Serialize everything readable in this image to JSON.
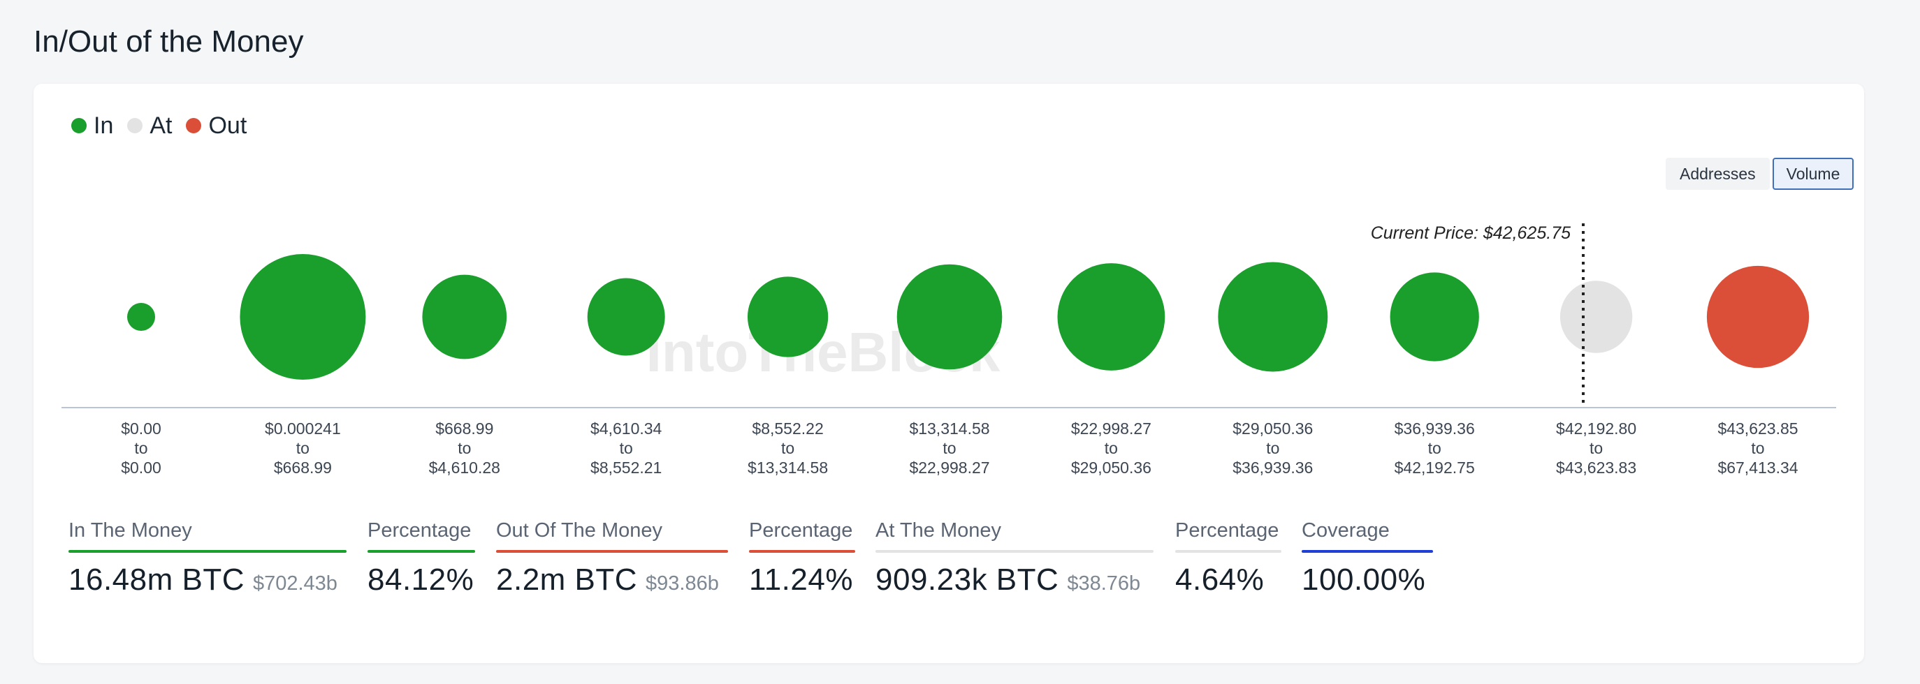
{
  "page": {
    "title": "In/Out of the Money"
  },
  "colors": {
    "in": "#1a9e2c",
    "at": "#e3e3e3",
    "out": "#db4f38",
    "coverage": "#1f3fd6",
    "baseline": "#b9c5d6",
    "watermark": "#e8e8e8"
  },
  "legend": {
    "items": [
      {
        "key": "in",
        "label": "In"
      },
      {
        "key": "at",
        "label": "At"
      },
      {
        "key": "out",
        "label": "Out"
      }
    ]
  },
  "toggle": {
    "options": [
      "Addresses",
      "Volume"
    ],
    "selected": "Volume"
  },
  "watermark": "IntoTheBlock",
  "chart_data": {
    "type": "bubble",
    "metric": "Volume",
    "current_price_label": "Current Price: $42,625.75",
    "current_price": 42625.75,
    "current_price_bucket_index": 9,
    "buckets": [
      {
        "from": "$0.00",
        "to": "$0.00",
        "status": "in",
        "relative_size": 0.044
      },
      {
        "from": "$0.000241",
        "to": "$668.99",
        "status": "in",
        "relative_size": 1.0
      },
      {
        "from": "$668.99",
        "to": "$4,610.28",
        "status": "in",
        "relative_size": 0.45
      },
      {
        "from": "$4,610.34",
        "to": "$8,552.21",
        "status": "in",
        "relative_size": 0.38
      },
      {
        "from": "$8,552.22",
        "to": "$13,314.58",
        "status": "in",
        "relative_size": 0.41
      },
      {
        "from": "$13,314.58",
        "to": "$22,998.27",
        "status": "in",
        "relative_size": 0.7
      },
      {
        "from": "$22,998.27",
        "to": "$29,050.36",
        "status": "in",
        "relative_size": 0.73
      },
      {
        "from": "$29,050.36",
        "to": "$36,939.36",
        "status": "in",
        "relative_size": 0.76
      },
      {
        "from": "$36,939.36",
        "to": "$42,192.75",
        "status": "in",
        "relative_size": 0.5
      },
      {
        "from": "$42,192.80",
        "to": "$43,623.83",
        "status": "at",
        "relative_size": 0.33
      },
      {
        "from": "$43,623.85",
        "to": "$67,413.34",
        "status": "out",
        "relative_size": 0.66
      }
    ],
    "to_word": "to"
  },
  "stats": {
    "in_the_money": {
      "label": "In The Money",
      "value": "16.48m BTC",
      "sub": "$702.43b"
    },
    "in_percentage": {
      "label": "Percentage",
      "value": "84.12%"
    },
    "out_of_the_money": {
      "label": "Out Of The Money",
      "value": "2.2m BTC",
      "sub": "$93.86b"
    },
    "out_percentage": {
      "label": "Percentage",
      "value": "11.24%"
    },
    "at_the_money": {
      "label": "At The Money",
      "value": "909.23k BTC",
      "sub": "$38.76b"
    },
    "at_percentage": {
      "label": "Percentage",
      "value": "4.64%"
    },
    "coverage": {
      "label": "Coverage",
      "value": "100.00%"
    }
  }
}
